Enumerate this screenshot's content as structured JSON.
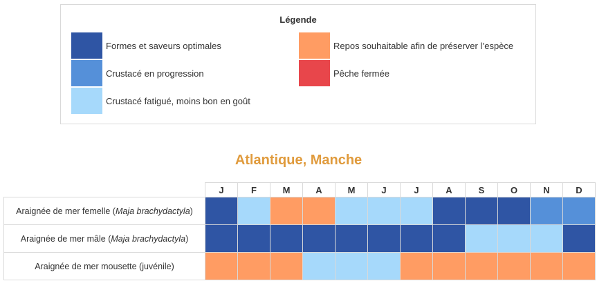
{
  "legend": {
    "title": "Légende",
    "items": [
      {
        "key": "optimal",
        "label": "Formes et saveurs optimales",
        "color": "#2f55a4"
      },
      {
        "key": "progress",
        "label": "Crustacé en progression",
        "color": "#5590d9"
      },
      {
        "key": "tired",
        "label": "Crustacé fatigué, moins bon en goût",
        "color": "#a6d9fb"
      },
      {
        "key": "rest",
        "label": "Repos souhaitable afin de préserver l’espèce",
        "color": "#ff9c63"
      },
      {
        "key": "closed",
        "label": "Pêche fermée",
        "color": "#e8464b"
      }
    ]
  },
  "chart_title": "Atlantique, Manche",
  "months": [
    "J",
    "F",
    "M",
    "A",
    "M",
    "J",
    "J",
    "A",
    "S",
    "O",
    "N",
    "D"
  ],
  "species": [
    {
      "name": "Araignée de mer femelle",
      "latin": "Maja brachydactyla",
      "months": [
        "optimal",
        "tired",
        "rest",
        "rest",
        "tired",
        "tired",
        "tired",
        "optimal",
        "optimal",
        "optimal",
        "progress",
        "progress"
      ]
    },
    {
      "name": "Araignée de mer mâle",
      "latin": "Maja brachydactyla",
      "months": [
        "optimal",
        "optimal",
        "optimal",
        "optimal",
        "optimal",
        "optimal",
        "optimal",
        "optimal",
        "tired",
        "tired",
        "tired",
        "optimal"
      ]
    },
    {
      "name": "Araignée de mer mousette (juvénile)",
      "latin": "",
      "months": [
        "rest",
        "rest",
        "rest",
        "tired",
        "tired",
        "tired",
        "rest",
        "rest",
        "rest",
        "rest",
        "rest",
        "rest"
      ]
    }
  ]
}
